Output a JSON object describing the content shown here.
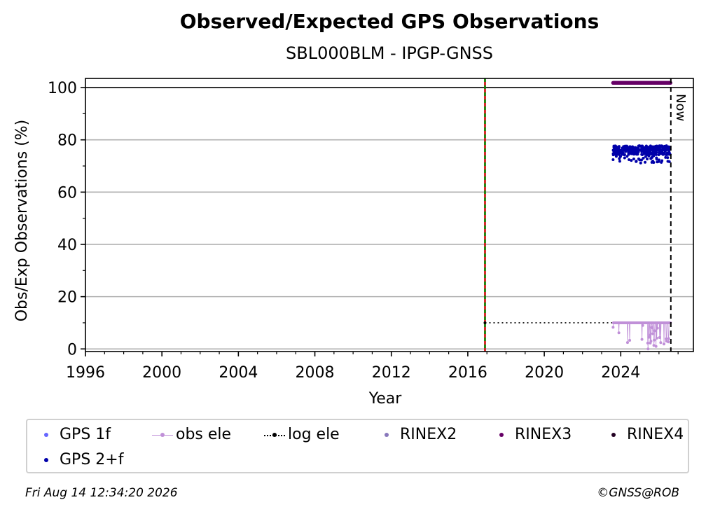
{
  "chart_data": {
    "type": "scatter",
    "title": "Observed/Expected GPS Observations",
    "subtitle": "SBL000BLM - IPGP-GNSS",
    "xlabel": "Year",
    "ylabel": "Obs/Exp Observations (%)",
    "xlim": [
      1996,
      2027.8
    ],
    "ylim": [
      -1,
      103.5
    ],
    "xticks": [
      "1996",
      "2000",
      "2004",
      "2008",
      "2012",
      "2016",
      "2020",
      "2024"
    ],
    "yticks": [
      "0",
      "20",
      "40",
      "60",
      "80",
      "100"
    ],
    "grid": "horizontal",
    "reference_line_y": 100,
    "now_line": {
      "x": 2026.62,
      "label": "Now"
    },
    "event_line": {
      "x": 2016.9
    },
    "series": [
      {
        "name": "GPS 2+f",
        "color": "#0000aa",
        "x_range": [
          2023.6,
          2026.6
        ],
        "y_typical": 76,
        "y_range": [
          71,
          78.5
        ]
      },
      {
        "name": "RINEX3",
        "color": "#660066",
        "x_range": [
          2023.6,
          2026.6
        ],
        "y": 101.8
      },
      {
        "name": "obs ele",
        "color": "#c090d8",
        "x_range": [
          2023.6,
          2026.6
        ],
        "y_typical": 10,
        "y_range": [
          0,
          10
        ]
      },
      {
        "name": "log ele",
        "color": "#000000",
        "x_range": [
          2016.9,
          2026.6
        ],
        "y": 10
      }
    ],
    "legend_position": "bottom"
  },
  "legend": [
    {
      "label": "GPS 1f",
      "color": "#6666ff",
      "style": "dot"
    },
    {
      "label": "obs ele",
      "color": "#c090d8",
      "style": "line-dot"
    },
    {
      "label": "log ele",
      "color": "#000000",
      "style": "dotted-dot"
    },
    {
      "label": "RINEX2",
      "color": "#8877bb",
      "style": "dot"
    },
    {
      "label": "RINEX3",
      "color": "#660066",
      "style": "dot"
    },
    {
      "label": "RINEX4",
      "color": "#220022",
      "style": "dot"
    },
    {
      "label": "GPS 2+f",
      "color": "#0000aa",
      "style": "dot"
    }
  ],
  "footer": {
    "timestamp": "Fri Aug 14 12:34:20 2026",
    "copyright": "©GNSS@ROB"
  }
}
